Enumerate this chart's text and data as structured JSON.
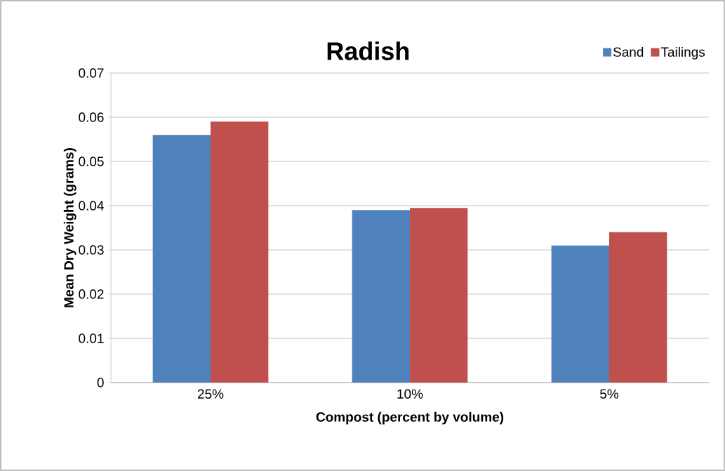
{
  "chart_data": {
    "type": "bar",
    "title": "Radish",
    "xlabel": "Compost  (percent by volume)",
    "ylabel": "Mean Dry Weight (grams)",
    "categories": [
      "25%",
      "10%",
      "5%"
    ],
    "series": [
      {
        "name": "Sand",
        "color": "#4f81bd",
        "values": [
          0.056,
          0.039,
          0.031
        ]
      },
      {
        "name": "Tailings",
        "color": "#c0504d",
        "values": [
          0.059,
          0.0395,
          0.034
        ]
      }
    ],
    "ylim": [
      0,
      0.07
    ],
    "yticks": [
      0,
      0.01,
      0.02,
      0.03,
      0.04,
      0.05,
      0.06,
      0.07
    ],
    "grid": "y",
    "legend": "top right"
  }
}
